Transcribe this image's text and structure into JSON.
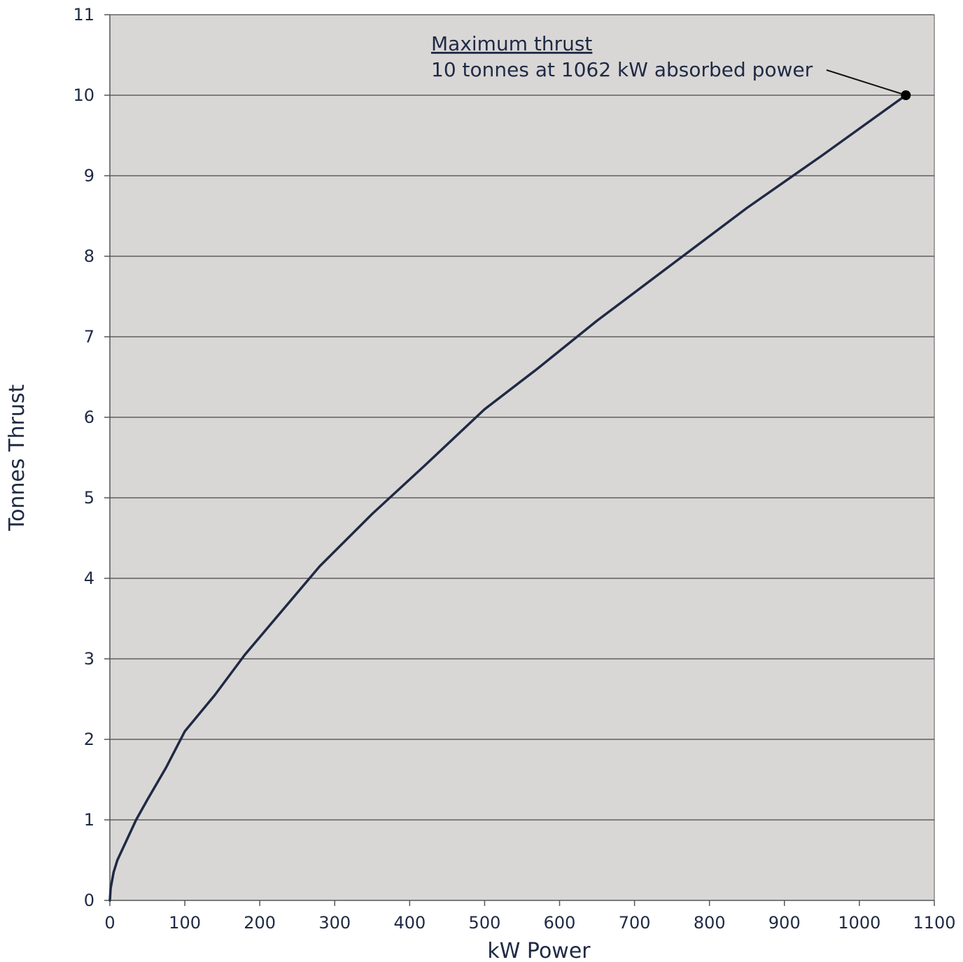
{
  "chart_data": {
    "type": "line",
    "title": "",
    "xlabel": "kW Power",
    "ylabel": "Tonnes Thrust",
    "xlim": [
      0,
      1100
    ],
    "ylim": [
      0,
      11
    ],
    "x_ticks": [
      0,
      100,
      200,
      300,
      400,
      500,
      600,
      700,
      800,
      900,
      1000,
      1100
    ],
    "y_ticks": [
      0,
      1,
      2,
      3,
      4,
      5,
      6,
      7,
      8,
      9,
      10,
      11
    ],
    "grid": "horizontal",
    "legend": "none",
    "series": [
      {
        "x": [
          0,
          1,
          5,
          10,
          20,
          35,
          50,
          75,
          100,
          140,
          180,
          230,
          280,
          350,
          420,
          500,
          570,
          650,
          750,
          850,
          950,
          1062
        ],
        "y": [
          0,
          0.15,
          0.35,
          0.5,
          0.7,
          1.0,
          1.25,
          1.65,
          2.1,
          2.55,
          3.05,
          3.6,
          4.15,
          4.8,
          5.4,
          6.1,
          6.6,
          7.2,
          7.9,
          8.6,
          9.25,
          10.0
        ],
        "color": "#1f2a44"
      }
    ],
    "highlight_point": {
      "x": 1062,
      "y": 10
    },
    "annotations": {
      "title": "Maximum thrust",
      "text": "10 tonnes at 1062 kW absorbed power"
    }
  },
  "colors": {
    "plot_background": "#d9d7d6",
    "line": "#1f2a44",
    "grid": "#222222",
    "axis": "#555555",
    "text": "#1f2a44",
    "marker": "#000000"
  }
}
